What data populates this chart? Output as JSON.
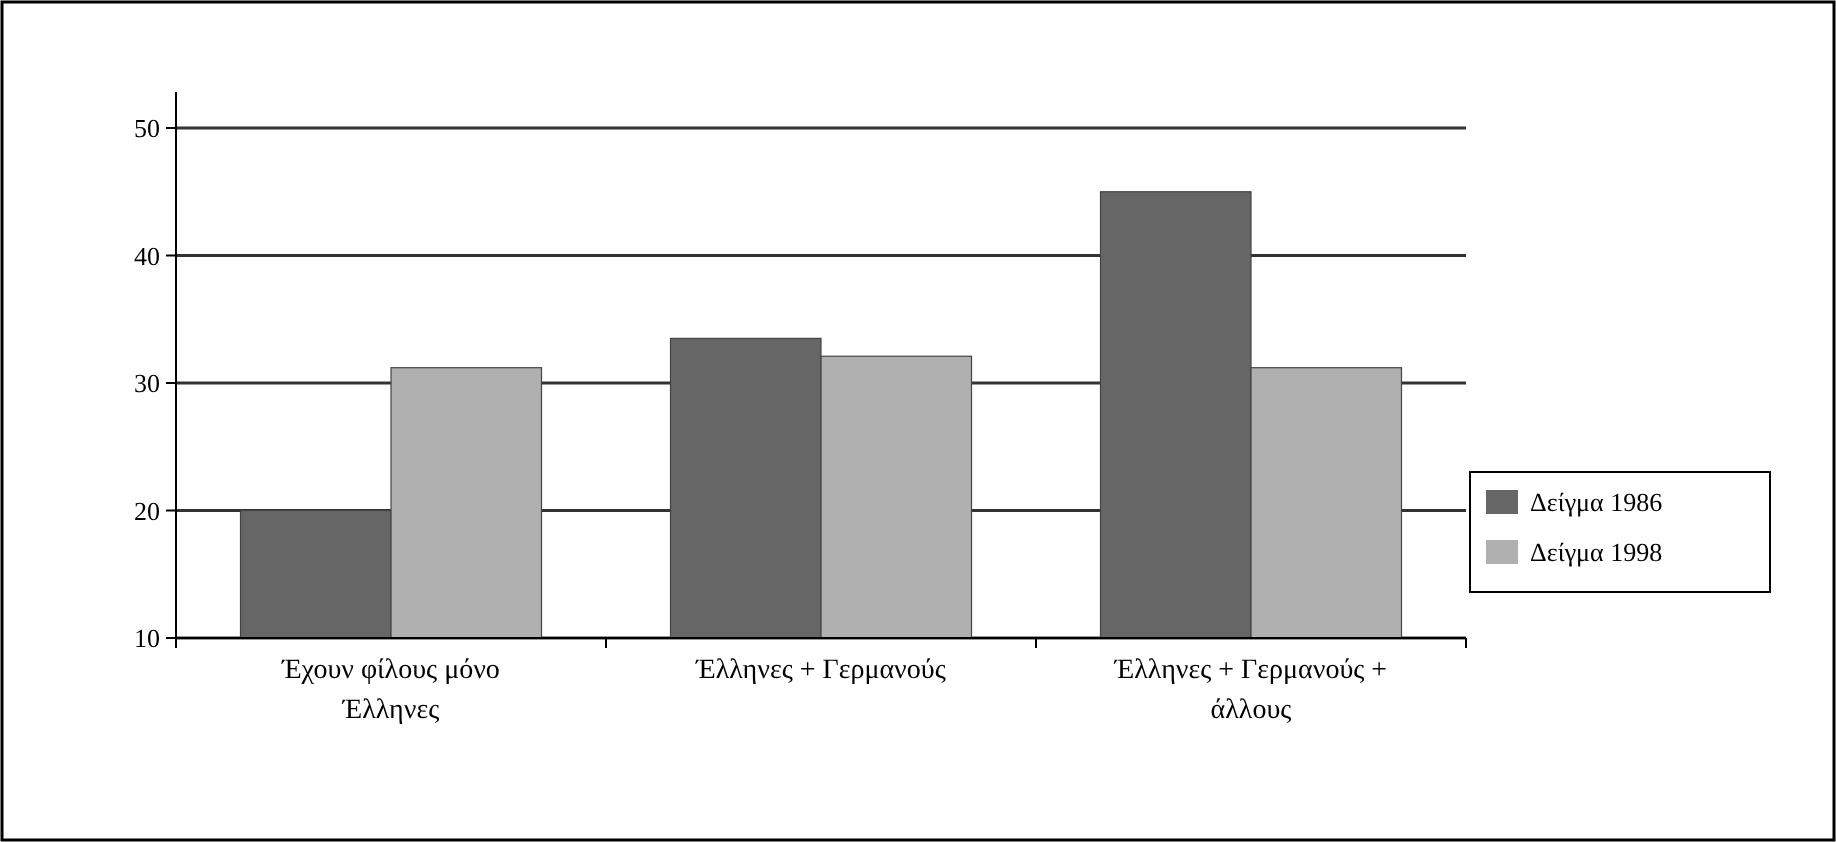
{
  "chart_data": {
    "type": "bar",
    "categories": [
      "Έχουν φίλους μόνο Έλληνες",
      "Έλληνες + Γερμανούς",
      "Έλληνες + Γερμανούς + άλλους"
    ],
    "series": [
      {
        "name": "Δείγμα 1986",
        "color": "#666666",
        "values": [
          20,
          33.5,
          45
        ]
      },
      {
        "name": "Δείγμα 1998",
        "color": "#b0b0b0",
        "values": [
          31.2,
          32.1,
          31.2
        ]
      }
    ],
    "ylim": [
      10,
      50
    ],
    "yticks": [
      10,
      20,
      30,
      40,
      50
    ],
    "grid": "y",
    "legend": "right"
  }
}
